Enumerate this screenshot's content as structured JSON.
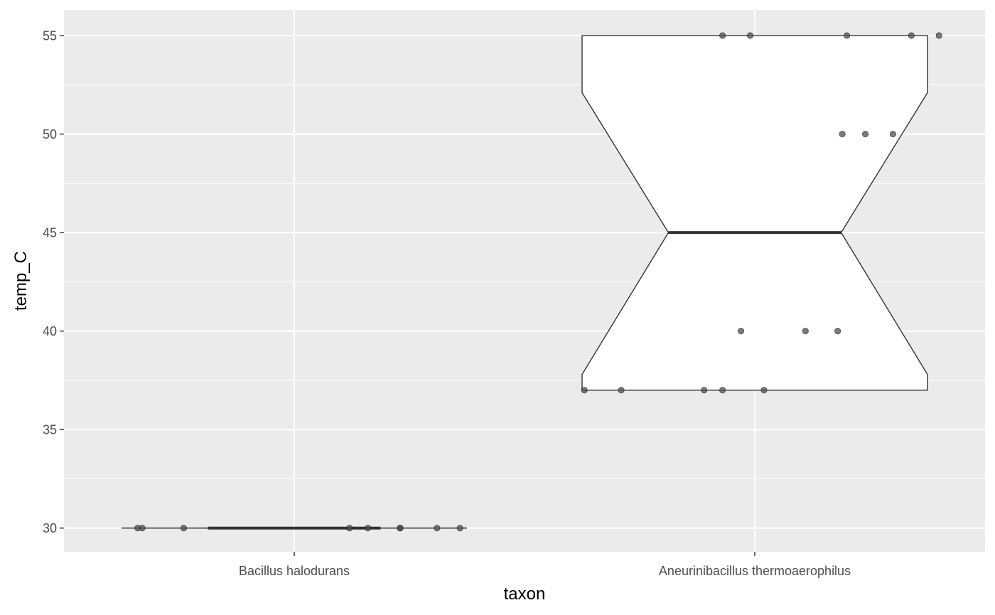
{
  "chart_data": {
    "type": "boxplot",
    "notched": true,
    "xlabel": "taxon",
    "ylabel": "temp_C",
    "categories": [
      "Bacillus halodurans",
      "Aneurinibacillus thermoaerophilus"
    ],
    "ylim": [
      28.8,
      56.3
    ],
    "y_ticks": [
      30,
      35,
      40,
      45,
      50,
      55
    ],
    "grid": true,
    "colors": {
      "panel_background": "#ebebeb",
      "grid_line": "#ffffff",
      "box_fill": "#ffffff",
      "box_outline": "#333333",
      "point": "#4d4d4d"
    },
    "boxes": [
      {
        "category": "Bacillus halodurans",
        "min": 30,
        "q1": 30,
        "median": 30,
        "q3": 30,
        "max": 30,
        "notch_low": 30,
        "notch_high": 30
      },
      {
        "category": "Aneurinibacillus thermoaerophilus",
        "min": 37,
        "q1": 37,
        "median": 45,
        "q3": 55,
        "max": 55,
        "notch_low": 37.8,
        "notch_high": 52.1
      }
    ],
    "points": [
      {
        "category": "Bacillus halodurans",
        "jitter": -0.34,
        "value": 30
      },
      {
        "category": "Bacillus halodurans",
        "jitter": -0.33,
        "value": 30
      },
      {
        "category": "Bacillus halodurans",
        "jitter": -0.24,
        "value": 30
      },
      {
        "category": "Bacillus halodurans",
        "jitter": 0.12,
        "value": 30
      },
      {
        "category": "Bacillus halodurans",
        "jitter": 0.16,
        "value": 30
      },
      {
        "category": "Bacillus halodurans",
        "jitter": 0.23,
        "value": 30
      },
      {
        "category": "Bacillus halodurans",
        "jitter": 0.23,
        "value": 30
      },
      {
        "category": "Bacillus halodurans",
        "jitter": 0.31,
        "value": 30
      },
      {
        "category": "Bacillus halodurans",
        "jitter": 0.36,
        "value": 30
      },
      {
        "category": "Aneurinibacillus thermoaerophilus",
        "jitter": -0.07,
        "value": 55
      },
      {
        "category": "Aneurinibacillus thermoaerophilus",
        "jitter": -0.01,
        "value": 55
      },
      {
        "category": "Aneurinibacillus thermoaerophilus",
        "jitter": 0.2,
        "value": 55
      },
      {
        "category": "Aneurinibacillus thermoaerophilus",
        "jitter": 0.34,
        "value": 55
      },
      {
        "category": "Aneurinibacillus thermoaerophilus",
        "jitter": 0.4,
        "value": 55
      },
      {
        "category": "Aneurinibacillus thermoaerophilus",
        "jitter": 0.19,
        "value": 50
      },
      {
        "category": "Aneurinibacillus thermoaerophilus",
        "jitter": 0.24,
        "value": 50
      },
      {
        "category": "Aneurinibacillus thermoaerophilus",
        "jitter": 0.3,
        "value": 50
      },
      {
        "category": "Aneurinibacillus thermoaerophilus",
        "jitter": -0.03,
        "value": 40
      },
      {
        "category": "Aneurinibacillus thermoaerophilus",
        "jitter": 0.11,
        "value": 40
      },
      {
        "category": "Aneurinibacillus thermoaerophilus",
        "jitter": 0.18,
        "value": 40
      },
      {
        "category": "Aneurinibacillus thermoaerophilus",
        "jitter": -0.37,
        "value": 37
      },
      {
        "category": "Aneurinibacillus thermoaerophilus",
        "jitter": -0.29,
        "value": 37
      },
      {
        "category": "Aneurinibacillus thermoaerophilus",
        "jitter": -0.11,
        "value": 37
      },
      {
        "category": "Aneurinibacillus thermoaerophilus",
        "jitter": -0.07,
        "value": 37
      },
      {
        "category": "Aneurinibacillus thermoaerophilus",
        "jitter": 0.02,
        "value": 37
      }
    ]
  }
}
